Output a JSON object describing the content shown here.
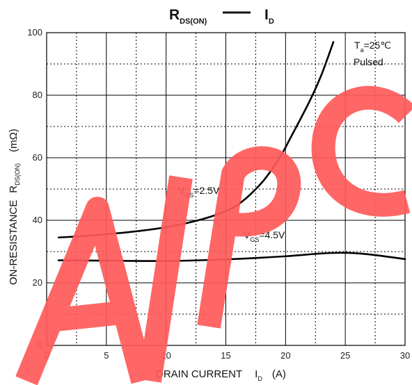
{
  "chart_data": {
    "type": "line",
    "title": {
      "left_main": "R",
      "left_sub": "DS(ON)",
      "right_main": "I",
      "right_sub": "D"
    },
    "xlabel": {
      "text": "DRAIN CURRENT",
      "sym": "I",
      "sub": "D",
      "unit": "(A)"
    },
    "ylabel": {
      "text": "ON-RESISTANCE",
      "sym": "R",
      "sub": "DS(ON)",
      "unit": "(mΩ)"
    },
    "xlim": [
      0,
      30
    ],
    "ylim": [
      0,
      100
    ],
    "x_ticks": [
      "0",
      "5",
      "10",
      "15",
      "20",
      "25",
      "30"
    ],
    "y_ticks": [
      "0",
      "20",
      "40",
      "60",
      "80",
      "100"
    ],
    "grid": true,
    "conditions": {
      "temp_main": "T",
      "temp_sub": "a",
      "temp_value": "=25℃",
      "mode": "Pulsed"
    },
    "series": [
      {
        "name": "VGS=2.5V",
        "label_main": "V",
        "label_sub": "GS",
        "label_value": "=2.5V",
        "x": [
          1,
          4,
          8,
          11,
          14,
          16,
          18,
          19.5,
          20.5,
          22,
          23,
          24
        ],
        "y": [
          34.5,
          35.2,
          36.7,
          38.5,
          41.5,
          45,
          52,
          60,
          67,
          78,
          86.5,
          97
        ]
      },
      {
        "name": "VGS=4.5V",
        "label_main": "V",
        "label_sub": "GS",
        "label_value": "=4.5V",
        "x": [
          1,
          5,
          10,
          15,
          20,
          23,
          25,
          27,
          30
        ],
        "y": [
          27.2,
          27.1,
          27,
          27.5,
          28.5,
          29.4,
          29.6,
          29.1,
          27.6
        ]
      }
    ],
    "watermark": "AIPC",
    "colors": {
      "line": "#000000",
      "grid": "#000000",
      "watermark": "#ff5a5a"
    }
  }
}
